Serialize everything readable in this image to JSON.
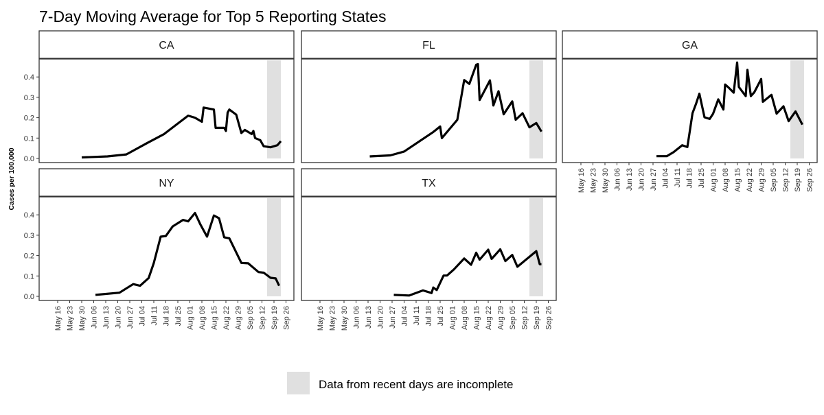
{
  "chart_data": {
    "type": "line",
    "title": "7-Day Moving Average for Top 5 Reporting States",
    "ylabel": "Cases per 100,000",
    "xlabel": "",
    "ylim": [
      0,
      0.48
    ],
    "yticks": [
      "0.0",
      "0.1",
      "0.2",
      "0.3",
      "0.4"
    ],
    "ytick_values": [
      0,
      0.1,
      0.2,
      0.3,
      0.4
    ],
    "xticks": [
      "May 16",
      "May 23",
      "May 30",
      "Jun 06",
      "Jun 13",
      "Jun 20",
      "Jun 27",
      "Jul 04",
      "Jul 11",
      "Jul 18",
      "Jul 25",
      "Aug 01",
      "Aug 08",
      "Aug 15",
      "Aug 22",
      "Aug 29",
      "Sep 05",
      "Sep 12",
      "Sep 19",
      "Sep 26"
    ],
    "xlim": [
      "May 05",
      "Oct 01"
    ],
    "grid": false,
    "line_color": "#000000",
    "incomplete_region": {
      "start": "Sep 15",
      "end": "Sep 23",
      "color": "#e0e0e0"
    },
    "legend": {
      "label": "Data from recent days are incomplete",
      "placement": "bottom"
    },
    "series": [
      {
        "name": "CA",
        "x": [
          "May 30",
          "Jun 14",
          "Jun 25",
          "Jul 07",
          "Jul 17",
          "Jul 31",
          "Aug 04",
          "Aug 08",
          "Aug 09",
          "Aug 15",
          "Aug 16",
          "Aug 21",
          "Aug 22",
          "Aug 23",
          "Aug 24",
          "Aug 28",
          "Aug 30",
          "Aug 31",
          "Sep 02",
          "Sep 06",
          "Sep 07",
          "Sep 08",
          "Sep 11",
          "Sep 13",
          "Sep 17",
          "Sep 21",
          "Sep 23"
        ],
        "y": [
          0.005,
          0.01,
          0.02,
          0.075,
          0.12,
          0.21,
          0.2,
          0.18,
          0.25,
          0.24,
          0.15,
          0.15,
          0.135,
          0.225,
          0.24,
          0.215,
          0.155,
          0.125,
          0.14,
          0.12,
          0.135,
          0.1,
          0.09,
          0.06,
          0.055,
          0.065,
          0.085
        ]
      },
      {
        "name": "FL",
        "x": [
          "Jun 14",
          "Jun 26",
          "Jul 04",
          "Jul 21",
          "Jul 25",
          "Jul 26",
          "Aug 04",
          "Aug 08",
          "Aug 11",
          "Aug 15",
          "Aug 16",
          "Aug 17",
          "Aug 23",
          "Aug 25",
          "Aug 28",
          "Aug 31",
          "Sep 05",
          "Sep 07",
          "Sep 11",
          "Sep 15",
          "Sep 19",
          "Sep 22"
        ],
        "y": [
          0.01,
          0.015,
          0.034,
          0.13,
          0.157,
          0.1,
          0.19,
          0.385,
          0.366,
          0.46,
          0.463,
          0.287,
          0.383,
          0.26,
          0.33,
          0.217,
          0.28,
          0.19,
          0.222,
          0.153,
          0.174,
          0.132
        ]
      },
      {
        "name": "GA",
        "x": [
          "Jun 29",
          "Jul 05",
          "Jul 09",
          "Jul 14",
          "Jul 17",
          "Jul 18",
          "Jul 20",
          "Jul 22",
          "Jul 24",
          "Jul 27",
          "Jul 30",
          "Aug 01",
          "Aug 04",
          "Aug 07",
          "Aug 08",
          "Aug 10",
          "Aug 13",
          "Aug 15",
          "Aug 16",
          "Aug 20",
          "Aug 21",
          "Aug 23",
          "Aug 25",
          "Aug 29",
          "Aug 30",
          "Sep 04",
          "Sep 07",
          "Sep 11",
          "Sep 14",
          "Sep 18",
          "Sep 22"
        ],
        "y": [
          0.011,
          0.011,
          0.031,
          0.065,
          0.056,
          0.11,
          0.222,
          0.267,
          0.318,
          0.202,
          0.194,
          0.22,
          0.29,
          0.24,
          0.363,
          0.348,
          0.323,
          0.471,
          0.351,
          0.306,
          0.435,
          0.306,
          0.325,
          0.39,
          0.278,
          0.312,
          0.22,
          0.256,
          0.183,
          0.231,
          0.166
        ]
      },
      {
        "name": "NY",
        "x": [
          "Jun 07",
          "Jun 21",
          "Jun 29",
          "Jul 03",
          "Jul 08",
          "Jul 11",
          "Jul 15",
          "Jul 18",
          "Jul 22",
          "Jul 28",
          "Jul 31",
          "Aug 04",
          "Aug 07",
          "Aug 11",
          "Aug 15",
          "Aug 18",
          "Aug 21",
          "Aug 24",
          "Aug 31",
          "Sep 04",
          "Sep 10",
          "Sep 13",
          "Sep 17",
          "Sep 20",
          "Sep 22"
        ],
        "y": [
          0.007,
          0.018,
          0.06,
          0.052,
          0.09,
          0.164,
          0.293,
          0.296,
          0.343,
          0.375,
          0.368,
          0.409,
          0.355,
          0.293,
          0.397,
          0.383,
          0.29,
          0.285,
          0.164,
          0.162,
          0.119,
          0.116,
          0.091,
          0.088,
          0.052
        ]
      },
      {
        "name": "TX",
        "x": [
          "Jun 28",
          "Jul 07",
          "Jul 15",
          "Jul 20",
          "Jul 21",
          "Jul 23",
          "Jul 27",
          "Jul 29",
          "Aug 02",
          "Aug 08",
          "Aug 12",
          "Aug 15",
          "Aug 17",
          "Aug 22",
          "Aug 24",
          "Aug 29",
          "Sep 01",
          "Sep 05",
          "Sep 08",
          "Sep 19",
          "Sep 21",
          "Sep 22"
        ],
        "y": [
          0.007,
          0.004,
          0.029,
          0.016,
          0.043,
          0.031,
          0.102,
          0.102,
          0.132,
          0.186,
          0.155,
          0.214,
          0.18,
          0.229,
          0.184,
          0.231,
          0.173,
          0.203,
          0.145,
          0.222,
          0.158,
          0.158
        ]
      }
    ]
  }
}
